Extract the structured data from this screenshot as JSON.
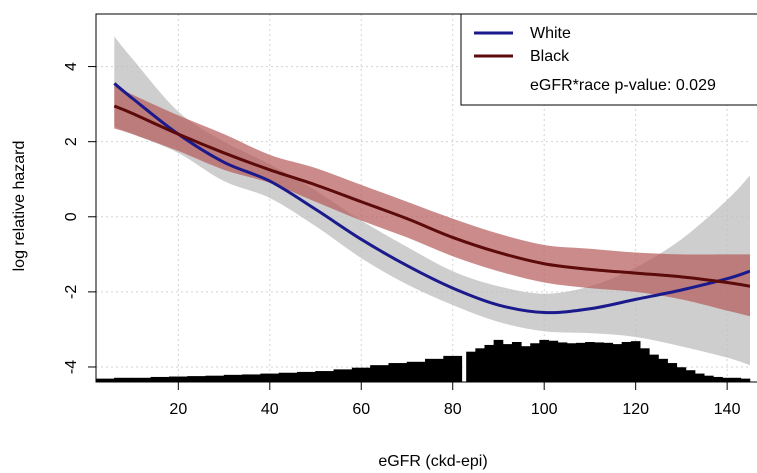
{
  "chart_data": {
    "type": "line",
    "title": "",
    "xlabel": "eGFR (ckd-epi)",
    "ylabel": "log relative hazard",
    "xlim": [
      2,
      145
    ],
    "ylim": [
      -4.4,
      5.4
    ],
    "x_ticks": [
      20,
      40,
      60,
      80,
      100,
      120,
      140
    ],
    "y_ticks": [
      -4,
      -2,
      0,
      2,
      4
    ],
    "grid": true,
    "legend": {
      "position": "top-right",
      "note": "eGFR*race p-value: 0.029"
    },
    "series": [
      {
        "name": "White",
        "color": "#1a1a8c",
        "band_color": "#bdbdbd",
        "x": [
          6,
          10,
          20,
          30,
          40,
          50,
          60,
          70,
          80,
          90,
          100,
          110,
          120,
          130,
          140,
          145
        ],
        "y": [
          3.55,
          3.15,
          2.2,
          1.45,
          0.95,
          0.2,
          -0.6,
          -1.3,
          -1.9,
          -2.35,
          -2.55,
          -2.45,
          -2.2,
          -1.95,
          -1.65,
          -1.45
        ],
        "lower": [
          2.4,
          2.2,
          1.7,
          0.95,
          0.5,
          -0.25,
          -1.1,
          -1.8,
          -2.35,
          -2.8,
          -3.05,
          -3.1,
          -3.2,
          -3.45,
          -3.75,
          -3.95
        ],
        "upper": [
          4.8,
          4.2,
          2.8,
          2.0,
          1.4,
          0.7,
          -0.1,
          -0.8,
          -1.45,
          -1.85,
          -2.05,
          -1.85,
          -1.35,
          -0.6,
          0.45,
          1.1
        ]
      },
      {
        "name": "Black",
        "color": "#5c0a0a",
        "band_color": "#b55a5a",
        "x": [
          6,
          10,
          20,
          30,
          40,
          50,
          60,
          70,
          80,
          90,
          100,
          110,
          120,
          130,
          140,
          145
        ],
        "y": [
          2.95,
          2.75,
          2.2,
          1.7,
          1.25,
          0.85,
          0.4,
          -0.05,
          -0.55,
          -0.95,
          -1.25,
          -1.4,
          -1.5,
          -1.6,
          -1.75,
          -1.85
        ],
        "lower": [
          2.35,
          2.2,
          1.75,
          1.25,
          0.9,
          0.4,
          -0.1,
          -0.55,
          -1.05,
          -1.45,
          -1.75,
          -1.9,
          -2.0,
          -2.2,
          -2.5,
          -2.65
        ],
        "upper": [
          3.5,
          3.25,
          2.7,
          2.2,
          1.65,
          1.3,
          0.85,
          0.4,
          -0.05,
          -0.45,
          -0.75,
          -0.85,
          -0.95,
          -1.0,
          -1.0,
          -1.0
        ]
      }
    ],
    "histogram": {
      "x": [
        4,
        8,
        12,
        16,
        20,
        24,
        28,
        32,
        36,
        40,
        44,
        48,
        52,
        56,
        60,
        64,
        68,
        72,
        76,
        80,
        84,
        86,
        88,
        90,
        92,
        94,
        96,
        98,
        100,
        102,
        104,
        106,
        108,
        110,
        112,
        114,
        116,
        118,
        120,
        122,
        124,
        126,
        128,
        130,
        132,
        134,
        136,
        138,
        140,
        142,
        144
      ],
      "counts": [
        0.08,
        0.1,
        0.1,
        0.12,
        0.13,
        0.14,
        0.15,
        0.17,
        0.18,
        0.2,
        0.22,
        0.24,
        0.26,
        0.3,
        0.34,
        0.4,
        0.45,
        0.48,
        0.55,
        0.62,
        0.72,
        0.8,
        0.88,
        1.0,
        0.9,
        0.95,
        0.85,
        0.92,
        1.0,
        0.98,
        0.94,
        0.92,
        0.93,
        0.95,
        0.94,
        0.93,
        0.9,
        0.95,
        0.97,
        0.8,
        0.65,
        0.55,
        0.45,
        0.35,
        0.28,
        0.2,
        0.15,
        0.12,
        0.1,
        0.1,
        0.08
      ],
      "max_height": 0.95
    }
  }
}
